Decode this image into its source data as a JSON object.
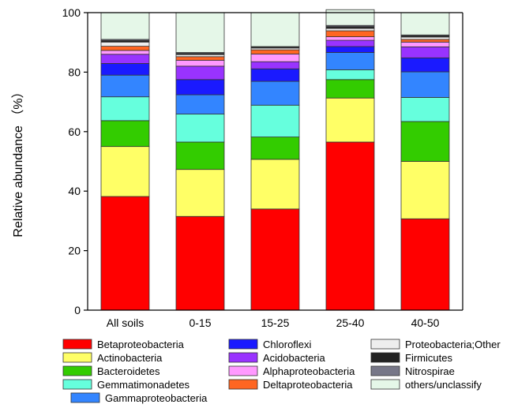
{
  "chart_data": {
    "type": "bar",
    "stacked": true,
    "ylabel": "Relative abundance （%）",
    "xlabel": "",
    "ylim": [
      0,
      100
    ],
    "yticks": [
      0,
      20,
      40,
      60,
      80,
      100
    ],
    "grid": false,
    "legend_position": "bottom",
    "categories": [
      "All soils",
      "0-15",
      "15-25",
      "25-40",
      "40-50"
    ],
    "series": [
      {
        "name": "Betaproteobacteria",
        "color": "#ff0000",
        "values": [
          38.2,
          31.5,
          34.0,
          56.5,
          30.7
        ]
      },
      {
        "name": "Actinobacteria",
        "color": "#ffff66",
        "values": [
          16.8,
          15.8,
          16.7,
          14.8,
          19.3
        ]
      },
      {
        "name": "Bacteroidetes",
        "color": "#33cc00",
        "values": [
          8.7,
          9.2,
          7.5,
          6.2,
          13.4
        ]
      },
      {
        "name": "Gemmatimonadetes",
        "color": "#66ffdd",
        "values": [
          8.0,
          9.4,
          10.7,
          3.3,
          8.1
        ]
      },
      {
        "name": "Gammaproteobacteria",
        "color": "#3385ff",
        "values": [
          7.3,
          6.5,
          8.0,
          5.8,
          8.6
        ]
      },
      {
        "name": "Chloroflexi",
        "color": "#1a1aff",
        "values": [
          3.9,
          5.1,
          4.2,
          2.0,
          4.7
        ]
      },
      {
        "name": "Acidobacteria",
        "color": "#9933ff",
        "values": [
          3.1,
          4.5,
          2.4,
          2.1,
          3.7
        ]
      },
      {
        "name": "Alphaproteobacteria",
        "color": "#ff99ff",
        "values": [
          1.3,
          2.0,
          2.6,
          1.2,
          1.6
        ]
      },
      {
        "name": "Deltaproteobacteria",
        "color": "#ff6622",
        "values": [
          1.4,
          1.2,
          1.4,
          2.0,
          0.9
        ]
      },
      {
        "name": "Proteobacteria;Other",
        "color": "#eeeeee",
        "values": [
          1.4,
          0.7,
          0.6,
          0.8,
          0.8
        ]
      },
      {
        "name": "Firmicutes",
        "color": "#222222",
        "values": [
          0.5,
          0.4,
          0.3,
          0.6,
          0.4
        ]
      },
      {
        "name": "Nitrospirae",
        "color": "#777788",
        "values": [
          0.4,
          0.3,
          0.2,
          0.4,
          0.3
        ]
      },
      {
        "name": "others/unclassify",
        "color": "#e5f7e8",
        "values": [
          9.0,
          13.4,
          11.4,
          5.3,
          7.5
        ]
      }
    ]
  }
}
